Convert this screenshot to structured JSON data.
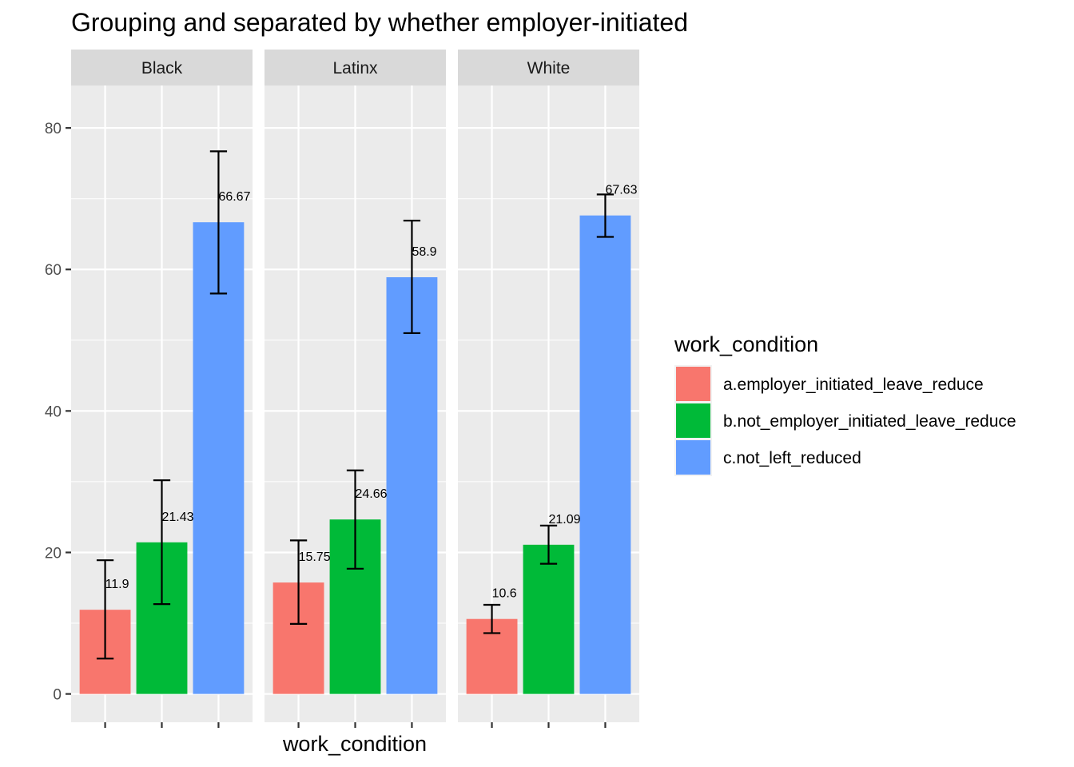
{
  "chart_data": {
    "type": "bar",
    "title": "Grouping and separated by whether employer-initiated",
    "xlabel": "work_condition",
    "ylabel": "",
    "ylim": [
      -4,
      86
    ],
    "yticks": [
      0,
      20,
      40,
      60,
      80
    ],
    "facets": [
      "Black",
      "Latinx",
      "White"
    ],
    "categories": [
      "a.employer_initiated_leave_reduce",
      "b.not_employer_initiated_leave_reduce",
      "c.not_left_reduced"
    ],
    "colors": [
      "#F8766D",
      "#00BA38",
      "#619CFF"
    ],
    "panels": [
      {
        "facet": "Black",
        "values": [
          11.9,
          21.43,
          66.67
        ],
        "labels": [
          "11.9",
          "21.43",
          "66.67"
        ],
        "error_low": [
          5.0,
          12.7,
          56.6
        ],
        "error_high": [
          18.9,
          30.2,
          76.7
        ]
      },
      {
        "facet": "Latinx",
        "values": [
          15.75,
          24.66,
          58.9
        ],
        "labels": [
          "15.75",
          "24.66",
          "58.9"
        ],
        "error_low": [
          9.9,
          17.7,
          51.0
        ],
        "error_high": [
          21.7,
          31.6,
          66.9
        ]
      },
      {
        "facet": "White",
        "values": [
          10.6,
          21.09,
          67.63
        ],
        "labels": [
          "10.6",
          "21.09",
          "67.63"
        ],
        "error_low": [
          8.6,
          18.4,
          64.6
        ],
        "error_high": [
          12.6,
          23.8,
          70.6
        ]
      }
    ],
    "legend": {
      "title": "work_condition",
      "position": "right"
    },
    "grid": true
  }
}
